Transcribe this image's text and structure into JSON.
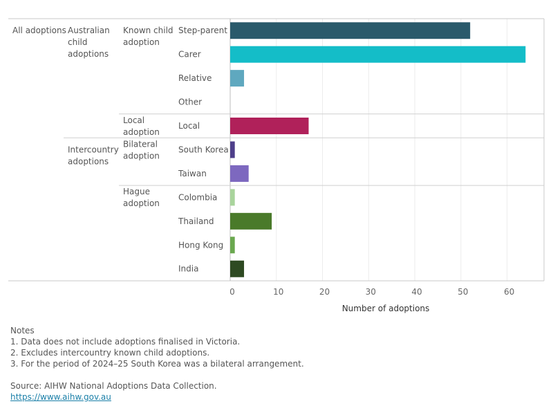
{
  "chart_data": {
    "type": "bar",
    "orientation": "horizontal",
    "xlabel": "Number of adoptions",
    "xlim": [
      0,
      68
    ],
    "xticks": [
      0,
      10,
      20,
      30,
      40,
      50,
      60
    ],
    "grid": true,
    "level1": "All adoptions",
    "level2": [
      {
        "label": "Australian child adoptions"
      },
      {
        "label": "Intercountry adoptions"
      }
    ],
    "level3": [
      {
        "label": "Known child adoption"
      },
      {
        "label": "Local adoption"
      },
      {
        "label": "Bilateral adoption"
      },
      {
        "label": "Hague adoption"
      }
    ],
    "rows": [
      {
        "category": "Step-parent",
        "value": 52,
        "color": "#2a5a6b"
      },
      {
        "category": "Carer",
        "value": 64,
        "color": "#14bdc8"
      },
      {
        "category": "Relative",
        "value": 3,
        "color": "#5fa8bf"
      },
      {
        "category": "Other",
        "value": 0,
        "color": "#5fa8bf"
      },
      {
        "category": "Local",
        "value": 17,
        "color": "#b0215a"
      },
      {
        "category": "South Korea",
        "value": 1,
        "color": "#4e3f8a"
      },
      {
        "category": "Taiwan",
        "value": 4,
        "color": "#7d68bf"
      },
      {
        "category": "Colombia",
        "value": 1,
        "color": "#a9d49c"
      },
      {
        "category": "Thailand",
        "value": 9,
        "color": "#4a7a2a"
      },
      {
        "category": "Hong Kong",
        "value": 1,
        "color": "#6aa84f"
      },
      {
        "category": "India",
        "value": 3,
        "color": "#2e4a22"
      }
    ]
  },
  "notes": {
    "heading": "Notes",
    "items": [
      "1. Data does not include adoptions finalised in Victoria.",
      "2. Excludes intercountry known child adoptions.",
      "3. For the period of 2024–25 South Korea was a bilateral arrangement."
    ],
    "source": "Source: AIHW National Adoptions Data Collection.",
    "link_text": "https://www.aihw.gov.au"
  }
}
